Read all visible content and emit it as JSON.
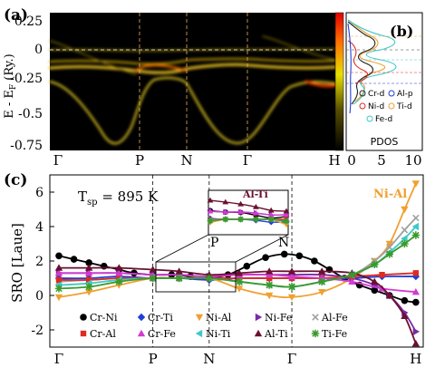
{
  "panel_a": {
    "label": "(a)",
    "ylabel": "E - E_F (Ry.)",
    "yticks": [
      "0.25",
      "0",
      "-0.25",
      "-0.5",
      "-0.75"
    ],
    "xticks": [
      "Γ",
      "P",
      "N",
      "Γ",
      "H"
    ]
  },
  "panel_b": {
    "label": "(b)",
    "xlabel": "PDOS",
    "xticks": [
      "0",
      "5",
      "10"
    ],
    "legend": [
      "Cr-d",
      "Al-p",
      "Ni-d",
      "Ti-d",
      "Fe-d"
    ]
  },
  "panel_c": {
    "label": "(c)",
    "ylabel": "SRO [Laue]",
    "yticks": [
      "6",
      "4",
      "2",
      "0",
      "-2"
    ],
    "xticks": [
      "Γ",
      "P",
      "N",
      "Γ",
      "H"
    ],
    "tsp": "T",
    "tsp_sub": "sp",
    "tsp_value": " = 895 K",
    "annot_niAl": "Ni-Al",
    "annot_alTi": "Al-Ti",
    "inset_xticks": [
      "P",
      "N"
    ]
  },
  "colors": {
    "Cr-Ni": "#000000",
    "Cr-Ti": "#1f3fd6",
    "Ni-Al": "#f0a030",
    "Ni-Fe": "#7a2aa8",
    "Al-Fe": "#a0a0a0",
    "Cr-Al": "#e02a20",
    "Cr-Fe": "#d23ad2",
    "Ni-Ti": "#40c8c8",
    "Al-Ti": "#6a1030",
    "Ti-Fe": "#3a9a2a"
  },
  "chart_data": [
    {
      "type": "heatmap",
      "panel": "a",
      "title": "",
      "ylabel": "E - E_F (Ry.)",
      "ylim": [
        -0.85,
        0.3
      ],
      "x_points": [
        "Γ",
        "P",
        "N",
        "Γ",
        "H"
      ]
    },
    {
      "type": "line",
      "panel": "b",
      "xlabel": "PDOS",
      "xlim": [
        0,
        12
      ],
      "series": [
        {
          "name": "Cr-d"
        },
        {
          "name": "Al-p"
        },
        {
          "name": "Ni-d"
        },
        {
          "name": "Ti-d"
        },
        {
          "name": "Fe-d"
        }
      ]
    },
    {
      "type": "line",
      "panel": "c",
      "ylabel": "SRO [Laue]",
      "ylim": [
        -3,
        7
      ],
      "x": [
        0,
        0.3,
        0.6,
        0.9,
        1.2,
        1.5,
        1.8,
        2.1,
        2.4,
        2.7,
        3.0,
        3.3,
        3.6,
        3.9,
        4.2,
        4.5,
        4.8,
        5.1,
        5.4,
        5.7,
        6.0,
        6.3,
        6.6
      ],
      "x_points": [
        {
          "label": "Γ",
          "x": 0
        },
        {
          "label": "P",
          "x": 2.5
        },
        {
          "label": "N",
          "x": 4.0
        },
        {
          "label": "Γ",
          "x": 6.2
        },
        {
          "label": "H",
          "x": 9.5
        }
      ],
      "series": [
        {
          "name": "Cr-Ni",
          "marker": "circle",
          "x": [
            0,
            0.4,
            0.8,
            1.2,
            1.6,
            2.0,
            2.5,
            3.0,
            3.5,
            4.0,
            4.5,
            5.0,
            5.5,
            6.0,
            6.4,
            6.8,
            7.2,
            7.6,
            8.0,
            8.4,
            8.8,
            9.2,
            9.5
          ],
          "values": [
            2.3,
            2.1,
            1.9,
            1.7,
            1.5,
            1.3,
            1.2,
            1.2,
            1.1,
            1.0,
            1.2,
            1.7,
            2.2,
            2.4,
            2.3,
            2.0,
            1.5,
            1.0,
            0.6,
            0.3,
            0.0,
            -0.3,
            -0.4
          ]
        },
        {
          "name": "Cr-Ti",
          "marker": "diamond",
          "x": [
            0,
            0.8,
            1.6,
            2.5,
            3.2,
            4.0,
            4.8,
            5.6,
            6.2,
            7.0,
            7.8,
            8.6,
            9.5
          ],
          "values": [
            1.0,
            1.0,
            1.1,
            1.0,
            1.0,
            0.9,
            1.0,
            1.0,
            1.0,
            1.0,
            1.0,
            1.1,
            1.1
          ]
        },
        {
          "name": "Ni-Al",
          "marker": "triangle-down",
          "x": [
            0,
            0.8,
            1.6,
            2.5,
            3.2,
            4.0,
            4.8,
            5.6,
            6.2,
            7.0,
            7.8,
            8.4,
            8.8,
            9.2,
            9.5
          ],
          "values": [
            -0.1,
            0.2,
            0.6,
            1.0,
            1.0,
            1.0,
            0.4,
            0.0,
            -0.1,
            0.2,
            1.0,
            2.0,
            3.0,
            5.0,
            6.5
          ]
        },
        {
          "name": "Ni-Fe",
          "marker": "triangle-right",
          "x": [
            0,
            0.8,
            1.6,
            2.5,
            3.2,
            4.0,
            4.8,
            5.6,
            6.2,
            7.0,
            7.8,
            8.4,
            8.8,
            9.2,
            9.5
          ],
          "values": [
            1.3,
            1.3,
            1.3,
            1.2,
            1.2,
            1.1,
            1.2,
            1.2,
            1.2,
            1.2,
            1.0,
            0.6,
            0.0,
            -1.0,
            -2.1
          ]
        },
        {
          "name": "Al-Fe",
          "marker": "x",
          "x": [
            0,
            0.8,
            1.6,
            2.5,
            3.2,
            4.0,
            4.8,
            5.6,
            6.2,
            7.0,
            7.8,
            8.4,
            8.8,
            9.2,
            9.5
          ],
          "values": [
            0.8,
            0.9,
            1.0,
            1.0,
            1.0,
            1.0,
            0.8,
            0.6,
            0.5,
            0.8,
            1.2,
            2.0,
            2.8,
            3.8,
            4.5
          ]
        },
        {
          "name": "Cr-Al",
          "marker": "square",
          "x": [
            0,
            0.8,
            1.6,
            2.5,
            3.2,
            4.0,
            4.8,
            5.6,
            6.2,
            7.0,
            7.8,
            8.6,
            9.5
          ],
          "values": [
            0.9,
            0.9,
            1.0,
            1.0,
            1.0,
            1.0,
            1.0,
            1.0,
            1.0,
            1.0,
            1.1,
            1.2,
            1.3
          ]
        },
        {
          "name": "Cr-Fe",
          "marker": "triangle-up",
          "x": [
            0,
            0.8,
            1.6,
            2.5,
            3.2,
            4.0,
            4.8,
            5.6,
            6.2,
            7.0,
            7.8,
            8.6,
            9.5
          ],
          "values": [
            1.3,
            1.3,
            1.3,
            1.2,
            1.2,
            1.1,
            1.2,
            1.2,
            1.1,
            1.0,
            0.8,
            0.4,
            0.2
          ]
        },
        {
          "name": "Ni-Ti",
          "marker": "triangle-left",
          "x": [
            0,
            0.8,
            1.6,
            2.5,
            3.2,
            4.0,
            4.8,
            5.6,
            6.2,
            7.0,
            7.8,
            8.4,
            8.8,
            9.2,
            9.5
          ],
          "values": [
            0.6,
            0.7,
            0.9,
            1.0,
            1.0,
            1.0,
            0.8,
            0.6,
            0.5,
            0.8,
            1.2,
            1.8,
            2.5,
            3.3,
            4.0
          ]
        },
        {
          "name": "Al-Ti",
          "marker": "triangle-up",
          "x": [
            0,
            0.8,
            1.6,
            2.5,
            3.2,
            4.0,
            4.8,
            5.6,
            6.2,
            7.0,
            7.8,
            8.4,
            8.8,
            9.2,
            9.5
          ],
          "values": [
            1.6,
            1.6,
            1.6,
            1.5,
            1.4,
            1.2,
            1.3,
            1.4,
            1.4,
            1.4,
            1.3,
            0.8,
            0.0,
            -1.2,
            -2.8
          ]
        },
        {
          "name": "Ti-Fe",
          "marker": "star",
          "x": [
            0,
            0.8,
            1.6,
            2.5,
            3.2,
            4.0,
            4.8,
            5.6,
            6.2,
            7.0,
            7.8,
            8.4,
            8.8,
            9.2,
            9.5
          ],
          "values": [
            0.4,
            0.5,
            0.8,
            1.0,
            1.0,
            1.0,
            0.8,
            0.6,
            0.5,
            0.8,
            1.2,
            1.8,
            2.4,
            3.0,
            3.5
          ]
        }
      ]
    }
  ]
}
